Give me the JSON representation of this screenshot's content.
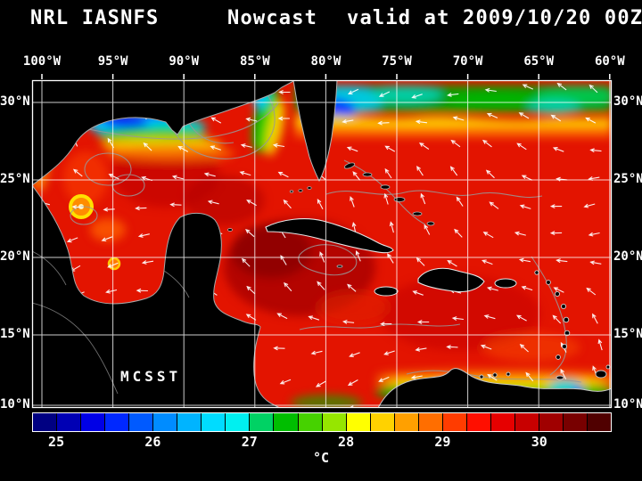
{
  "title": {
    "model": "NRL IASNFS",
    "product": "Nowcast",
    "valid": "valid at 2009/10/20 00Z"
  },
  "map": {
    "lon_labels": [
      "100°W",
      "95°W",
      "90°W",
      "85°W",
      "80°W",
      "75°W",
      "70°W",
      "65°W",
      "60°W"
    ],
    "lat_labels": [
      "30°N",
      "25°N",
      "20°N",
      "15°N",
      "10°N"
    ],
    "annotation": "MCSST",
    "sea_base_color": "#e31400",
    "land_color": "#000000",
    "grid_color": "#ffffff"
  },
  "wind": {
    "vector_color": "#ffffff"
  },
  "colorbar": {
    "unit": "°C",
    "tick_labels": [
      "25",
      "26",
      "27",
      "28",
      "29",
      "30"
    ],
    "range_start": 24.75,
    "range_end": 30.75,
    "colors": [
      "#000082",
      "#0000b4",
      "#0000e6",
      "#0028ff",
      "#005aff",
      "#008cff",
      "#00b4ff",
      "#00dcff",
      "#00f0f0",
      "#00d264",
      "#00be00",
      "#46d200",
      "#96e600",
      "#ffff00",
      "#ffd200",
      "#ffa000",
      "#ff6e00",
      "#ff3c00",
      "#ff0f00",
      "#e60000",
      "#c80000",
      "#a00000",
      "#780000",
      "#500000"
    ]
  }
}
